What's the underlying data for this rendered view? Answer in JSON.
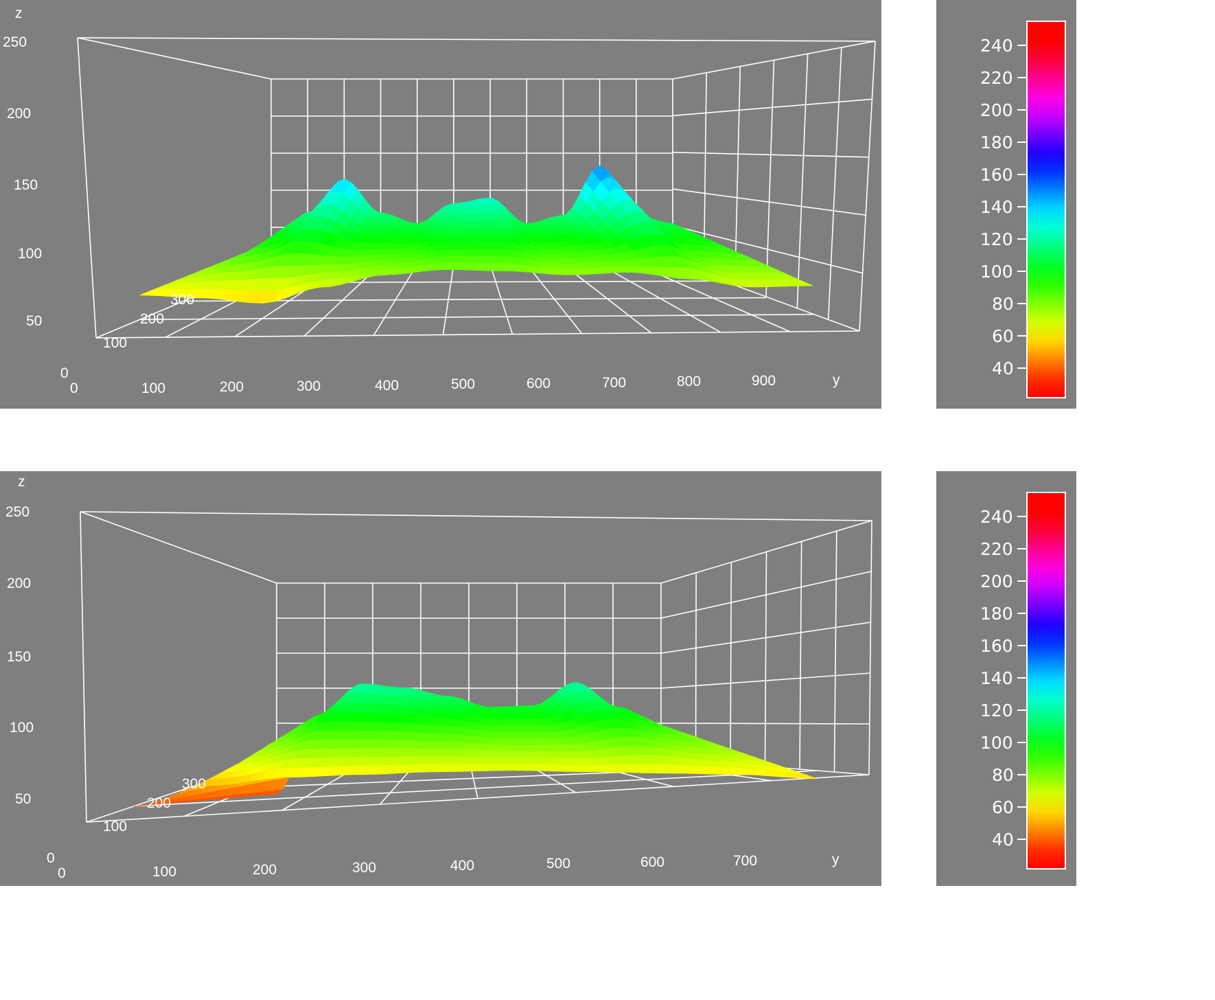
{
  "colors": {
    "panel_bg": "#7f7f7f",
    "grid": "#ffffff",
    "text": "#ffffff"
  },
  "chart_data": [
    {
      "type": "surface",
      "title": "",
      "axes": {
        "z": {
          "label": "z",
          "ticks": [
            "250",
            "200",
            "150",
            "100",
            "50"
          ],
          "range": [
            0,
            250
          ]
        },
        "y": {
          "label": "y",
          "ticks": [
            "100",
            "200",
            "300",
            "400",
            "500",
            "600",
            "700",
            "800",
            "900"
          ],
          "range": [
            0,
            1000
          ]
        },
        "x": {
          "ticks": [
            "100",
            "200",
            "300"
          ]
        },
        "origin": [
          "0",
          "0"
        ]
      },
      "colorbar": {
        "ticks": [
          "240",
          "220",
          "200",
          "180",
          "160",
          "140",
          "120",
          "100",
          "80",
          "60",
          "40"
        ],
        "range": [
          30,
          255
        ]
      },
      "y": [
        0,
        100,
        200,
        250,
        300,
        380,
        500,
        600,
        700,
        780,
        900,
        1000
      ],
      "z_back": [
        98,
        120,
        145,
        120,
        112,
        127,
        131,
        112,
        118,
        155,
        118,
        112
      ],
      "z_front": [
        68,
        66,
        62,
        74,
        83,
        87,
        86,
        83,
        85,
        80,
        74,
        75
      ]
    },
    {
      "type": "surface",
      "title": "",
      "axes": {
        "z": {
          "label": "z",
          "ticks": [
            "250",
            "200",
            "150",
            "100",
            "50"
          ],
          "range": [
            0,
            250
          ]
        },
        "y": {
          "label": "y",
          "ticks": [
            "100",
            "200",
            "300",
            "400",
            "500",
            "600",
            "700"
          ],
          "range": [
            0,
            800
          ]
        },
        "x": {
          "ticks": [
            "100",
            "200",
            "300"
          ]
        },
        "origin": [
          "0",
          "0"
        ]
      },
      "colorbar": {
        "ticks": [
          "240",
          "220",
          "200",
          "180",
          "160",
          "140",
          "120",
          "100",
          "80",
          "60",
          "40"
        ],
        "range": [
          30,
          255
        ]
      },
      "y": [
        0,
        100,
        150,
        200,
        300,
        400,
        500,
        580,
        650,
        760
      ],
      "z_back": [
        45,
        103,
        125,
        122,
        116,
        108,
        109,
        126,
        108,
        95
      ],
      "z_front": [
        45,
        60,
        66,
        68,
        70,
        71,
        70,
        69,
        68,
        65
      ]
    }
  ]
}
